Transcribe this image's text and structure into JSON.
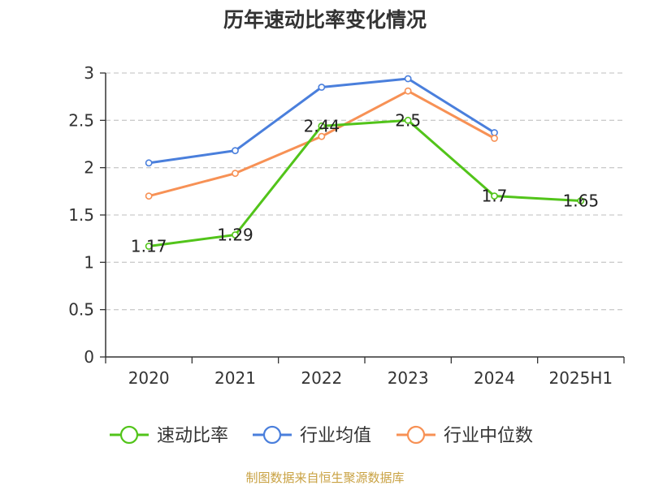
{
  "chart_data": {
    "type": "line",
    "title": "历年速动比率变化情况",
    "categories": [
      "2020",
      "2021",
      "2022",
      "2023",
      "2024",
      "2025H1"
    ],
    "ylim": [
      0,
      3
    ],
    "yticks": [
      "0",
      "0.5",
      "1",
      "1.5",
      "2",
      "2.5",
      "3"
    ],
    "grid": true,
    "legend_position": "bottom",
    "series": [
      {
        "name": "速动比率",
        "color": "#52c41a",
        "values": [
          1.17,
          1.29,
          2.44,
          2.5,
          1.7,
          1.65
        ],
        "labels": [
          "1.17",
          "1.29",
          "2.44",
          "2.5",
          "1.7",
          "1.65"
        ]
      },
      {
        "name": "行业均值",
        "color": "#4a7fdc",
        "values": [
          2.05,
          2.18,
          2.85,
          2.94,
          2.37,
          null
        ]
      },
      {
        "name": "行业中位数",
        "color": "#f79155",
        "values": [
          1.7,
          1.94,
          2.33,
          2.81,
          2.31,
          null
        ]
      }
    ],
    "source": "制图数据来自恒生聚源数据库"
  }
}
